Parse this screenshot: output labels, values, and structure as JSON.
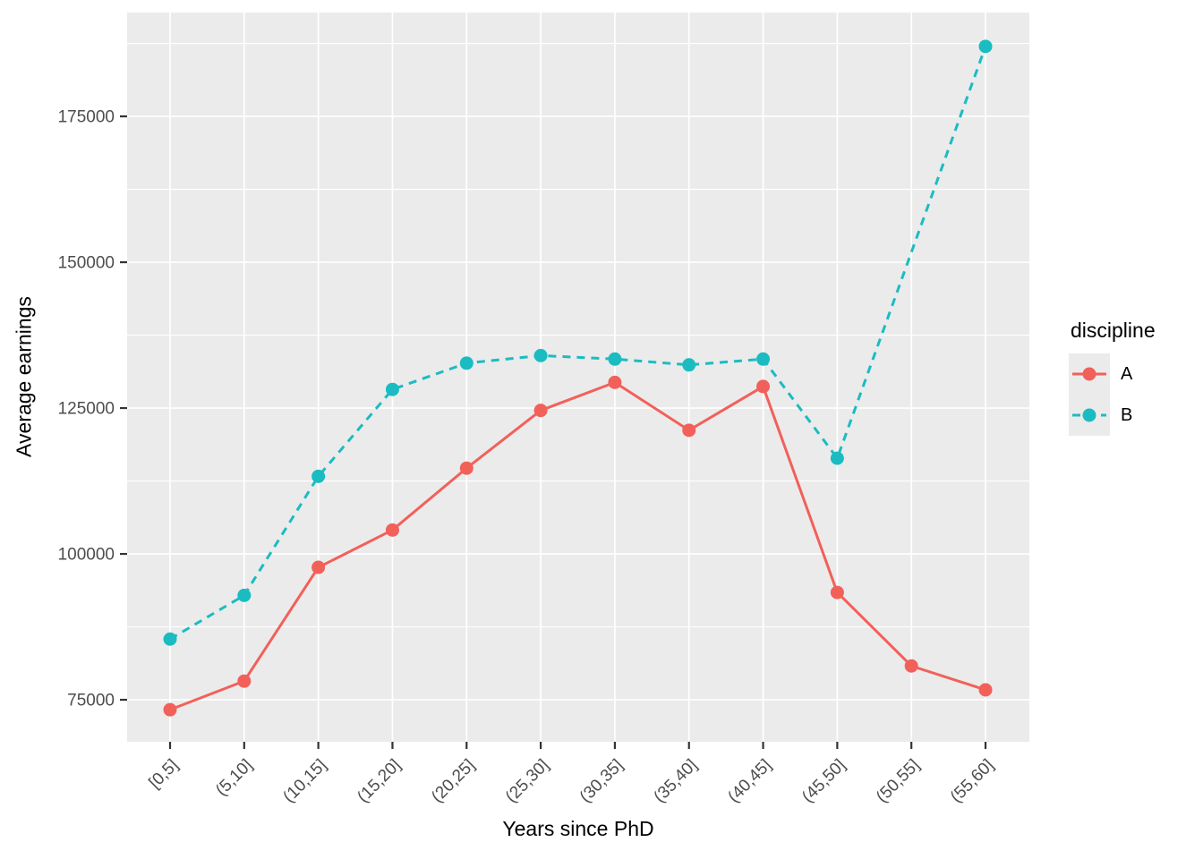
{
  "chart_data": {
    "type": "line",
    "title": "",
    "xlabel": "Years since PhD",
    "ylabel": "Average earnings",
    "legend_title": "discipline",
    "legend_position": "right",
    "categories": [
      "[0,5]",
      "(5,10]",
      "(10,15]",
      "(15,20]",
      "(20,25]",
      "(25,30]",
      "(30,35]",
      "(35,40]",
      "(40,45]",
      "(45,50]",
      "(50,55]",
      "(55,60]"
    ],
    "series": [
      {
        "name": "A",
        "color": "#F2605A",
        "linestyle": "solid",
        "marker": "circle",
        "values": [
          73300,
          78200,
          97700,
          104100,
          114700,
          124600,
          129400,
          121200,
          128700,
          93400,
          80800,
          76700
        ]
      },
      {
        "name": "B",
        "color": "#1ABCC1",
        "linestyle": "dashed",
        "marker": "circle",
        "values": [
          85400,
          92900,
          113300,
          128200,
          132700,
          134000,
          133400,
          132400,
          133400,
          116400,
          null,
          187000
        ]
      }
    ],
    "y_ticks": [
      75000,
      100000,
      125000,
      150000,
      175000
    ],
    "y_tick_labels": [
      "75000",
      "100000",
      "125000",
      "150000",
      "175000"
    ],
    "y_minor_ticks": [
      87500,
      112500,
      137500,
      162500,
      187500
    ],
    "ylim": [
      67800,
      192800
    ],
    "grid": "major-and-minor",
    "panel_bg": "#EBEBEB",
    "grid_color": "#FFFFFF",
    "tick_color": "#333333",
    "tick_label_color": "#4D4D4D",
    "title_color": "#000000"
  }
}
